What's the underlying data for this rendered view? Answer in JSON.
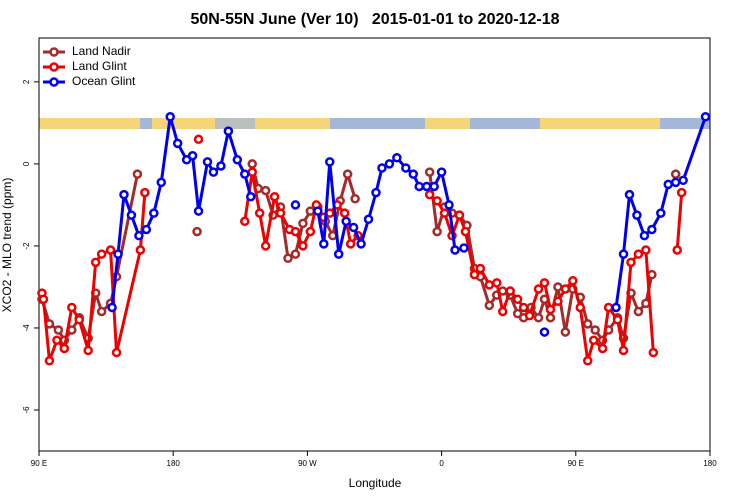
{
  "chart_data": {
    "type": "line",
    "title": "50N-55N June (Ver 10)   2015-01-01 to 2020-12-18",
    "x_label": "Longitude",
    "y_label": "XCO2 - MLO trend (ppm)",
    "xlim": [
      90,
      540
    ],
    "xticks": [
      {
        "value": 90,
        "label": "90 E"
      },
      180,
      {
        "value": 270,
        "label": "90 W"
      },
      {
        "value": 360,
        "label": "0"
      },
      {
        "value": 450,
        "label": "90 E"
      },
      {
        "value": 540,
        "label": "180"
      }
    ],
    "ylim": [
      -7,
      3.07
    ],
    "yticks": [
      -6,
      -4,
      -2,
      0,
      2
    ],
    "legend": "top-left",
    "series": [
      {
        "name": "Land Nadir",
        "color": "#a52a2a",
        "x": [
          92,
          97,
          103,
          107,
          112,
          117,
          123,
          128,
          132,
          138,
          142,
          156,
          176,
          196,
          215,
          233,
          237,
          242,
          247,
          252,
          257,
          262,
          267,
          272,
          277,
          282,
          287,
          292,
          297,
          302,
          327,
          352,
          357,
          362,
          367,
          372,
          377,
          382,
          386,
          392,
          397,
          401,
          406,
          411,
          415,
          420,
          425,
          429,
          433,
          438,
          443,
          448,
          453,
          458,
          463,
          468,
          472,
          478,
          482,
          487,
          492,
          497,
          501,
          509,
          517
        ],
        "values": [
          -3.3,
          -3.9,
          -4.05,
          -4.3,
          -4.05,
          -3.75,
          -4.25,
          -3.15,
          -3.6,
          -3.4,
          -2.75,
          -0.25,
          null,
          -1.65,
          null,
          0.0,
          -0.6,
          -0.65,
          -1.25,
          -1.05,
          -2.3,
          -2.2,
          -1.45,
          -1.15,
          -1.05,
          -1.4,
          -1.75,
          -0.9,
          -0.25,
          -0.85,
          null,
          -0.2,
          -1.65,
          -1.05,
          -1.2,
          -1.25,
          -1.5,
          -2.55,
          -2.75,
          -3.45,
          -3.2,
          -3.1,
          -3.2,
          -3.65,
          -3.75,
          -3.5,
          -3.75,
          -3.3,
          -3.75,
          -3.0,
          -4.1,
          -3.05,
          -3.25,
          -3.9,
          -4.05,
          -4.3,
          -4.05,
          -3.75,
          -4.25,
          -3.15,
          -3.6,
          -3.4,
          -2.7,
          null,
          -0.25
        ]
      },
      {
        "name": "Land Glint",
        "color": "#ee0000",
        "x": [
          92,
          93,
          97,
          102,
          107,
          112,
          117,
          123,
          128,
          132,
          138,
          142,
          158,
          161,
          180,
          197,
          215,
          228,
          233,
          238,
          242,
          248,
          252,
          258,
          262,
          267,
          272,
          276,
          281,
          285,
          290,
          295,
          299,
          304,
          330,
          352,
          357,
          362,
          367,
          372,
          376,
          382,
          386,
          392,
          397,
          401,
          406,
          411,
          415,
          419,
          425,
          429,
          433,
          438,
          443,
          448,
          453,
          458,
          462,
          468,
          472,
          478,
          482,
          487,
          492,
          497,
          502,
          510,
          518,
          521
        ],
        "values": [
          -3.15,
          -3.3,
          -4.8,
          -4.3,
          -4.5,
          -3.5,
          -3.8,
          -4.55,
          -2.4,
          -2.2,
          -2.1,
          -4.6,
          -2.1,
          -0.7,
          null,
          0.6,
          null,
          -1.4,
          -0.2,
          -1.2,
          -2.0,
          -0.8,
          -1.2,
          -1.6,
          -1.65,
          -2.0,
          -1.65,
          -1.0,
          -1.3,
          -1.2,
          -1.0,
          -1.2,
          -1.95,
          -1.75,
          null,
          -0.75,
          -0.9,
          -1.2,
          -1.75,
          -1.25,
          -1.65,
          -2.7,
          -2.55,
          -2.95,
          -2.9,
          -3.6,
          -3.1,
          -3.3,
          -3.5,
          -3.7,
          -3.05,
          -2.9,
          -3.55,
          -3.35,
          -3.05,
          -2.85,
          -3.5,
          -4.8,
          -4.3,
          -4.5,
          -3.5,
          -3.8,
          -4.55,
          -2.4,
          -2.2,
          -2.1,
          -4.6,
          null,
          -2.1,
          -0.7
        ]
      },
      {
        "name": "Ocean Glint",
        "color": "#0000ee",
        "x": [
          139,
          143,
          147,
          152,
          157,
          162,
          167,
          172,
          178,
          183,
          189,
          193,
          197,
          203,
          207,
          212,
          217,
          223,
          228,
          232,
          247,
          262,
          270,
          277,
          281,
          285,
          291,
          296,
          301,
          306,
          311,
          316,
          320,
          325,
          330,
          336,
          341,
          345,
          350,
          355,
          360,
          365,
          369,
          375,
          400,
          429,
          460,
          477,
          482,
          486,
          491,
          496,
          501,
          507,
          512,
          517,
          522,
          537
        ],
        "values": [
          -3.5,
          -2.2,
          -0.75,
          -1.25,
          -1.75,
          -1.6,
          -1.2,
          -0.45,
          1.15,
          0.5,
          0.1,
          0.2,
          -1.15,
          0.05,
          -0.2,
          -0.05,
          0.8,
          0.1,
          -0.25,
          -0.8,
          null,
          -1.0,
          null,
          -1.15,
          -1.95,
          0.05,
          -2.2,
          -1.4,
          -1.55,
          -1.95,
          -1.35,
          -0.7,
          -0.1,
          0.0,
          0.15,
          -0.1,
          -0.25,
          -0.55,
          -0.55,
          -0.55,
          -0.2,
          -1.0,
          -2.1,
          -2.05,
          null,
          -4.1,
          null,
          -3.5,
          -2.2,
          -0.75,
          -1.25,
          -1.75,
          -1.6,
          -1.2,
          -0.5,
          -0.45,
          -0.4,
          1.15
        ]
      }
    ]
  }
}
